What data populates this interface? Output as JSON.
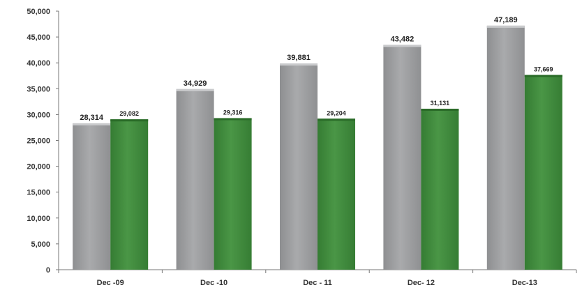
{
  "chart_data": {
    "type": "bar",
    "title": "",
    "xlabel": "",
    "ylabel": "",
    "categories": [
      "Dec -09",
      "Dec -10",
      "Dec - 11",
      "Dec- 12",
      "Dec-13"
    ],
    "ylim": [
      0,
      50000
    ],
    "yticks": [
      "0",
      "5,000",
      "10,000",
      "15,000",
      "20,000",
      "25,000",
      "30,000",
      "35,000",
      "40,000",
      "45,000",
      "50,000"
    ],
    "grid": false,
    "legend": "none",
    "series": [
      {
        "color": "#9b9c9e",
        "values": [
          28314,
          34929,
          39881,
          43482,
          47189
        ],
        "labels": [
          "28,314",
          "34,929",
          "39,881",
          "43,482",
          "47,189"
        ]
      },
      {
        "color": "#3f8a3c",
        "values": [
          29082,
          29316,
          29204,
          31131,
          37669
        ],
        "labels": [
          "29,082",
          "29,316",
          "29,204",
          "31,131",
          "37,669"
        ]
      }
    ]
  }
}
